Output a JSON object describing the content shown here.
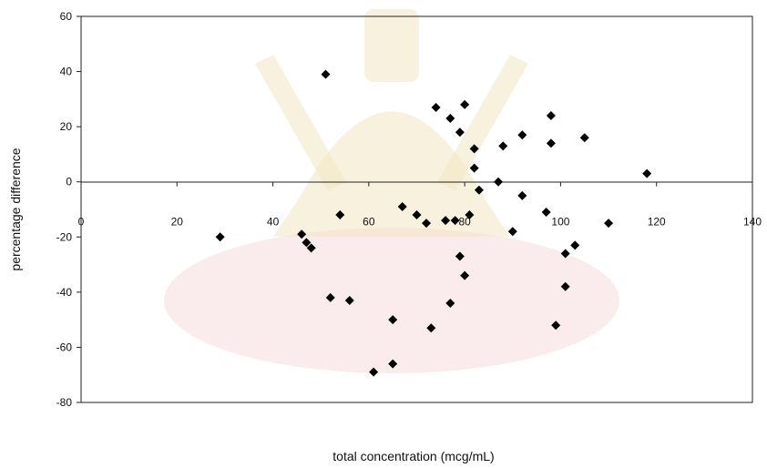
{
  "chart_data": {
    "type": "scatter",
    "xlabel": "total concentration (mcg/mL)",
    "ylabel": "percentage difference",
    "xlim": [
      0,
      140
    ],
    "ylim": [
      -80,
      60
    ],
    "xticks": [
      "0",
      "20",
      "40",
      "60",
      "80",
      "100",
      "120",
      "140"
    ],
    "yticks": [
      "-80",
      "-60",
      "-40",
      "-20",
      "0",
      "20",
      "40",
      "60"
    ],
    "grid": false,
    "legend": "none",
    "marker": "diamond",
    "marker_color": "#000000",
    "points": [
      {
        "x": 29,
        "y": -20
      },
      {
        "x": 46,
        "y": -19
      },
      {
        "x": 47,
        "y": -22
      },
      {
        "x": 48,
        "y": -24
      },
      {
        "x": 51,
        "y": 39
      },
      {
        "x": 52,
        "y": -42
      },
      {
        "x": 54,
        "y": -12
      },
      {
        "x": 56,
        "y": -43
      },
      {
        "x": 61,
        "y": -69
      },
      {
        "x": 65,
        "y": -50
      },
      {
        "x": 65,
        "y": -66
      },
      {
        "x": 67,
        "y": -9
      },
      {
        "x": 70,
        "y": -12
      },
      {
        "x": 72,
        "y": -15
      },
      {
        "x": 73,
        "y": -53
      },
      {
        "x": 74,
        "y": 27
      },
      {
        "x": 76,
        "y": -14
      },
      {
        "x": 77,
        "y": 23
      },
      {
        "x": 77,
        "y": -44
      },
      {
        "x": 78,
        "y": -14
      },
      {
        "x": 79,
        "y": 18
      },
      {
        "x": 79,
        "y": -27
      },
      {
        "x": 80,
        "y": 28
      },
      {
        "x": 80,
        "y": -34
      },
      {
        "x": 81,
        "y": -12
      },
      {
        "x": 82,
        "y": 12
      },
      {
        "x": 82,
        "y": 5
      },
      {
        "x": 83,
        "y": -3
      },
      {
        "x": 87,
        "y": 0
      },
      {
        "x": 88,
        "y": 13
      },
      {
        "x": 90,
        "y": -18
      },
      {
        "x": 92,
        "y": 17
      },
      {
        "x": 92,
        "y": -5
      },
      {
        "x": 97,
        "y": -11
      },
      {
        "x": 98,
        "y": 24
      },
      {
        "x": 98,
        "y": 14
      },
      {
        "x": 99,
        "y": -52
      },
      {
        "x": 101,
        "y": -38
      },
      {
        "x": 101,
        "y": -26
      },
      {
        "x": 103,
        "y": -23
      },
      {
        "x": 105,
        "y": 16
      },
      {
        "x": 110,
        "y": -15
      },
      {
        "x": 118,
        "y": 3
      }
    ]
  }
}
